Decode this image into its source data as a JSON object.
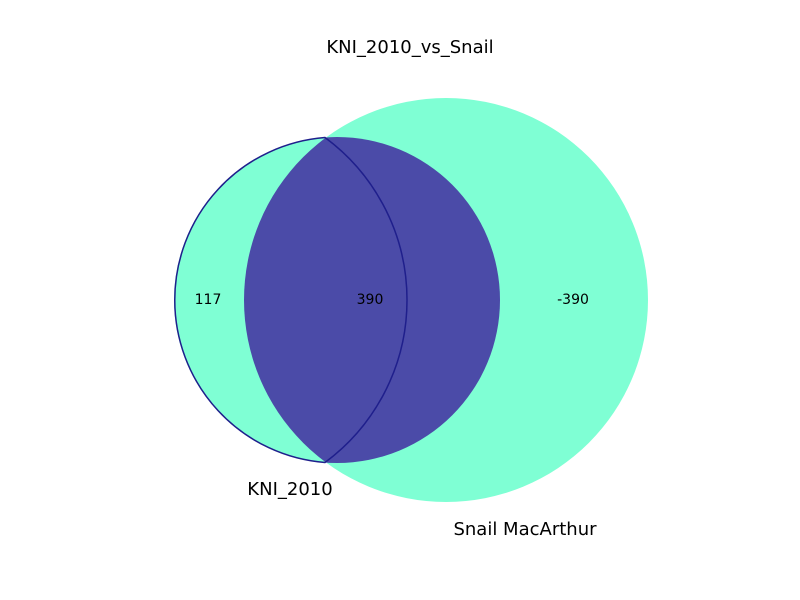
{
  "title": "KNI_2010_vs_Snail",
  "sets": {
    "left": {
      "name": "KNI_2010",
      "only_count": "117"
    },
    "right": {
      "name": "Snail MacArthur",
      "only_count": "-390"
    }
  },
  "intersection": {
    "count": "390"
  },
  "colors": {
    "set_fill": "#7fffd4",
    "intersection_fill": "#4b4ba8",
    "intersection_stroke": "#1f1f8c"
  }
}
